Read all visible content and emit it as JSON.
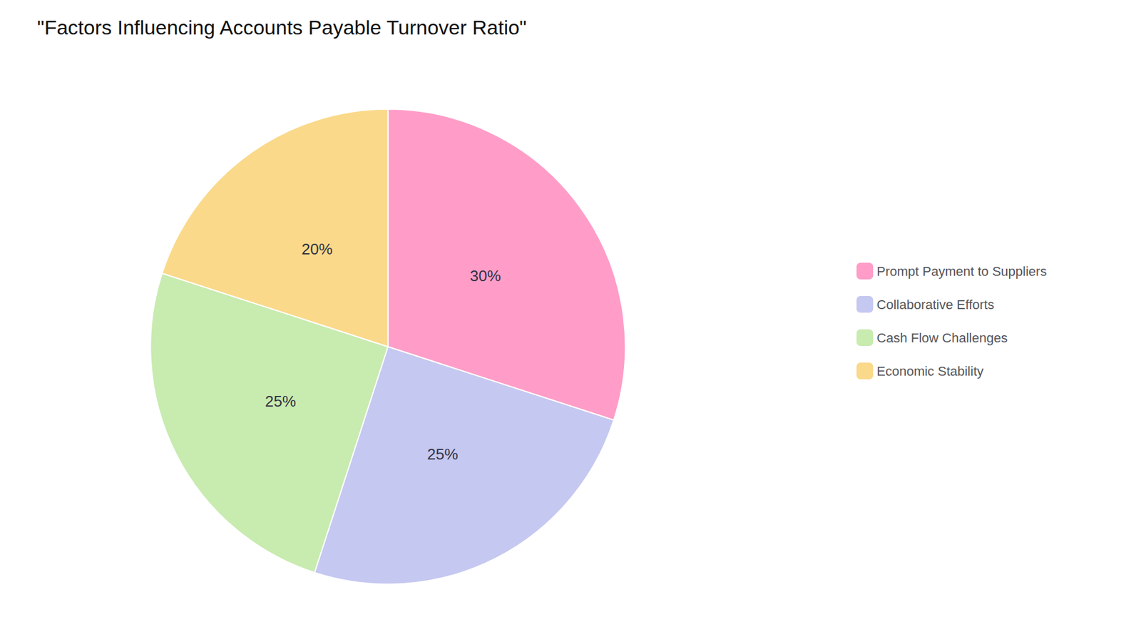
{
  "chart_data": {
    "type": "pie",
    "title": "\"Factors Influencing Accounts Payable Turnover Ratio\"",
    "categories": [
      "Prompt Payment to Suppliers",
      "Collaborative Efforts",
      "Cash Flow Challenges",
      "Economic Stability"
    ],
    "values": [
      30,
      25,
      25,
      20
    ],
    "value_labels": [
      "30%",
      "25%",
      "25%",
      "20%"
    ],
    "colors": [
      "#FF9DC8",
      "#C5C8F0",
      "#C8EBB0",
      "#FAD98A"
    ],
    "data_labels": true,
    "legend": "right"
  }
}
